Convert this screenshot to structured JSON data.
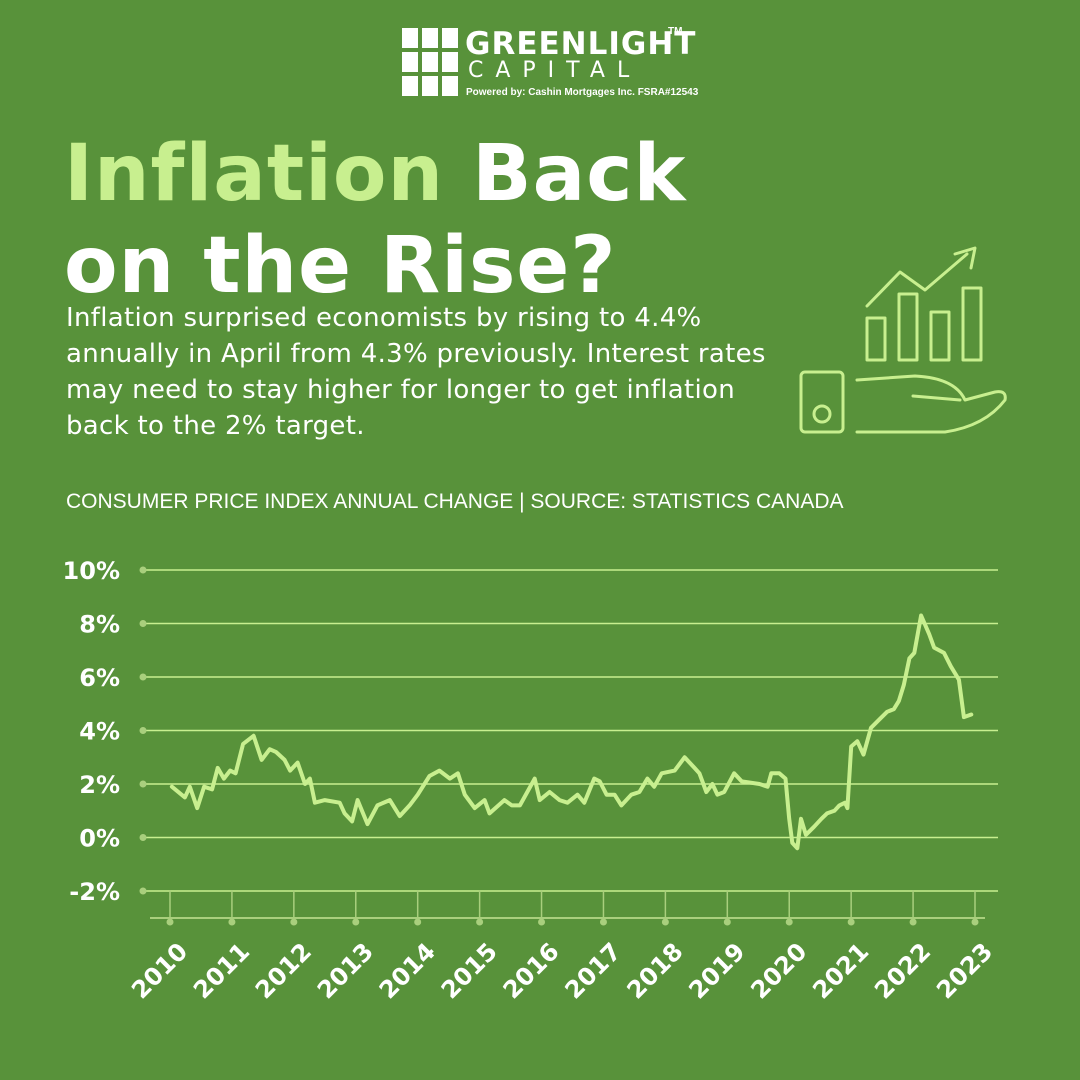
{
  "logo": {
    "name": "GREENLIGHT",
    "trademark": "TM",
    "subname": "CAPITAL",
    "powered_by": "Powered by:  Cashin Mortgages Inc.  FSRA#12543"
  },
  "title_parts": [
    "Inflation",
    "Back",
    "on the Rise?"
  ],
  "description": "Inflation surprised economists by rising to 4.4% annually in April from 4.3% previously. Interest rates may need to stay higher for longer to get inflation back to the 2% target.",
  "chart_data": {
    "type": "line",
    "subtitle": "CONSUMER PRICE INDEX ANNUAL CHANGE  |  SOURCE: STATISTICS CANADA",
    "color": "#c8ef8f",
    "grid": true,
    "x": [
      2010.03,
      2010.24,
      2010.32,
      2010.44,
      2010.55,
      2010.68,
      2010.77,
      2010.87,
      2010.97,
      2011.06,
      2011.18,
      2011.35,
      2011.48,
      2011.61,
      2011.71,
      2011.85,
      2011.94,
      2012.06,
      2012.18,
      2012.26,
      2012.34,
      2012.5,
      2012.74,
      2012.82,
      2012.94,
      2013.03,
      2013.19,
      2013.35,
      2013.55,
      2013.71,
      2013.87,
      2014.0,
      2014.19,
      2014.35,
      2014.52,
      2014.65,
      2014.76,
      2014.92,
      2015.08,
      2015.16,
      2015.4,
      2015.52,
      2015.65,
      2015.89,
      2015.97,
      2016.13,
      2016.29,
      2016.42,
      2016.58,
      2016.69,
      2016.85,
      2016.94,
      2017.05,
      2017.18,
      2017.29,
      2017.45,
      2017.58,
      2017.71,
      2017.82,
      2017.94,
      2018.15,
      2018.31,
      2018.47,
      2018.55,
      2018.66,
      2018.76,
      2018.84,
      2018.95,
      2019.11,
      2019.23,
      2019.52,
      2019.65,
      2019.71,
      2019.84,
      2019.94,
      2020.0,
      2020.05,
      2020.13,
      2020.19,
      2020.27,
      2020.4,
      2020.52,
      2020.61,
      2020.73,
      2020.81,
      2020.9,
      2020.94,
      2021.0,
      2021.1,
      2021.2,
      2021.32,
      2021.45,
      2021.58,
      2021.69,
      2021.77,
      2021.85,
      2021.94,
      2022.02,
      2022.13,
      2022.26,
      2022.34,
      2022.5,
      2022.61,
      2022.74,
      2022.82,
      2022.94
    ],
    "values": [
      1.9,
      1.5,
      1.9,
      1.1,
      1.9,
      1.8,
      2.6,
      2.2,
      2.5,
      2.4,
      3.5,
      3.8,
      2.9,
      3.3,
      3.2,
      2.9,
      2.5,
      2.8,
      2.0,
      2.2,
      1.3,
      1.4,
      1.3,
      0.9,
      0.6,
      1.4,
      0.5,
      1.2,
      1.4,
      0.8,
      1.2,
      1.6,
      2.3,
      2.5,
      2.2,
      2.4,
      1.6,
      1.1,
      1.4,
      0.9,
      1.4,
      1.2,
      1.2,
      2.2,
      1.4,
      1.7,
      1.4,
      1.3,
      1.6,
      1.3,
      2.2,
      2.1,
      1.6,
      1.6,
      1.2,
      1.6,
      1.7,
      2.2,
      1.9,
      2.4,
      2.5,
      3.0,
      2.6,
      2.4,
      1.7,
      2.0,
      1.6,
      1.7,
      2.4,
      2.1,
      2.0,
      1.9,
      2.4,
      2.4,
      2.2,
      0.7,
      -0.2,
      -0.4,
      0.7,
      0.1,
      0.4,
      0.7,
      0.9,
      1.0,
      1.2,
      1.3,
      1.1,
      3.4,
      3.6,
      3.1,
      4.1,
      4.4,
      4.7,
      4.8,
      5.1,
      5.7,
      6.7,
      6.9,
      8.3,
      7.6,
      7.1,
      6.9,
      6.4,
      5.9,
      4.5,
      4.6
    ],
    "xlim": [
      2010,
      2023
    ],
    "xticks": [
      2010,
      2011,
      2012,
      2013,
      2014,
      2015,
      2016,
      2017,
      2018,
      2019,
      2020,
      2021,
      2022,
      2023
    ],
    "ylim": [
      -2,
      10
    ],
    "yticks": [
      {
        "value": -2,
        "label": "-2%"
      },
      {
        "value": 0,
        "label": "0%"
      },
      {
        "value": 2,
        "label": "2%"
      },
      {
        "value": 4,
        "label": "4%"
      },
      {
        "value": 6,
        "label": "6%"
      },
      {
        "value": 8,
        "label": "8%"
      },
      {
        "value": 10,
        "label": "10%"
      }
    ]
  }
}
